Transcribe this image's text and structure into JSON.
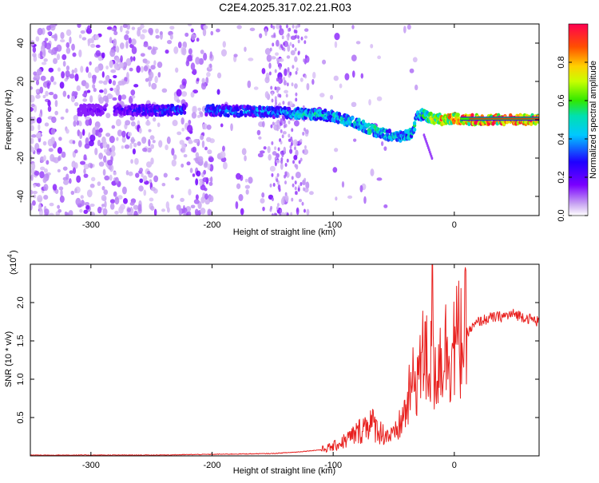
{
  "title": "C2E4.2025.317.02.21.R03",
  "chart_data": [
    {
      "type": "heatmap",
      "xlabel": "Height of straight line (km)",
      "ylabel": "Frequency (Hz)",
      "xlim": [
        -350,
        70
      ],
      "ylim": [
        -50,
        50
      ],
      "x_ticks": [
        -300,
        -200,
        -100,
        0
      ],
      "y_ticks": [
        -40,
        -20,
        0,
        20,
        40
      ],
      "x_tick_labels": [
        "-300",
        "-200",
        "-100",
        "0"
      ],
      "y_tick_labels": [
        "-40",
        "-20",
        "0",
        "20",
        "40"
      ],
      "colorbar": {
        "label": "Normalized spectral amplitude",
        "range": [
          0,
          1
        ],
        "ticks": [
          0.0,
          0.2,
          0.4,
          0.6,
          0.8
        ],
        "tick_labels": [
          "0.0",
          "0.2",
          "0.4",
          "0.6",
          "0.8"
        ]
      },
      "ridge": {
        "description_points_x": [
          -305,
          -250,
          -200,
          -150,
          -120,
          -100,
          -80,
          -65,
          -55,
          -45,
          -35,
          -30,
          -25,
          -20,
          -10,
          0,
          10,
          70
        ],
        "description_points_y": [
          5,
          5,
          5,
          4,
          3,
          2,
          -2,
          -6,
          -8,
          -9,
          -7,
          2,
          3,
          1,
          0,
          1,
          0,
          0
        ],
        "amplitude": [
          0.15,
          0.35,
          0.4,
          0.45,
          0.55,
          0.5,
          0.55,
          0.6,
          0.55,
          0.5,
          0.55,
          0.5,
          0.6,
          0.7,
          0.9,
          0.95,
          1.0,
          1.0
        ]
      }
    },
    {
      "type": "line",
      "xlabel": "Height of straight line (km)",
      "ylabel": "SNR (10 * v/v)",
      "scale_label": "(x10",
      "scale_exp": "4",
      "scale_close": ")",
      "xlim": [
        -350,
        70
      ],
      "ylim": [
        0,
        2.5
      ],
      "x_ticks": [
        -300,
        -200,
        -100,
        0
      ],
      "y_ticks": [
        0.5,
        1.0,
        1.5,
        2.0
      ],
      "x_tick_labels": [
        "-300",
        "-200",
        "-100",
        "0"
      ],
      "y_tick_labels": [
        "0.5",
        "1.0",
        "1.5",
        "2.0"
      ],
      "color": "#e8201e",
      "series": [
        {
          "name": "SNR",
          "x": [
            -350,
            -300,
            -250,
            -200,
            -150,
            -130,
            -110,
            -100,
            -90,
            -80,
            -70,
            -60,
            -50,
            -45,
            -40,
            -35,
            -30,
            -25,
            -20,
            -15,
            -10,
            -5,
            0,
            10,
            20,
            30,
            40,
            50,
            60,
            70
          ],
          "y": [
            0.01,
            0.01,
            0.01,
            0.02,
            0.03,
            0.05,
            0.08,
            0.12,
            0.2,
            0.3,
            0.45,
            0.3,
            0.25,
            0.4,
            0.6,
            0.9,
            1.1,
            1.3,
            1.2,
            1.15,
            1.35,
            1.4,
            1.45,
            1.6,
            1.75,
            1.8,
            1.82,
            1.85,
            1.8,
            1.75
          ]
        }
      ],
      "peaks": [
        {
          "x": -27,
          "y": 1.35
        },
        {
          "x": -24,
          "y": 1.75
        },
        {
          "x": -18,
          "y": 2.5
        }
      ]
    }
  ]
}
